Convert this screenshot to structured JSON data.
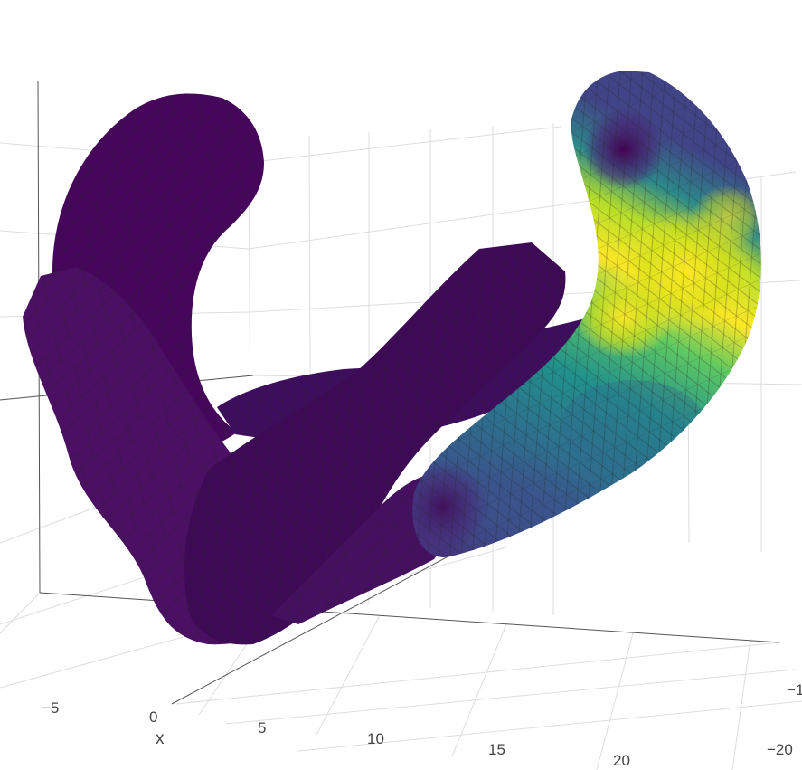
{
  "chart_data": {
    "type": "surface",
    "description": "3D triangulated mesh surface colored by a scalar field",
    "colorscale": "viridis",
    "colors": {
      "low": "#440154",
      "mid_low": "#31688e",
      "mid": "#21918c",
      "mid_high": "#5ec962",
      "high": "#fde725",
      "mesh_edge": "#333333",
      "grid": "#d9d9d9"
    },
    "axes": {
      "x": {
        "title": "x",
        "ticks": [
          "−5",
          "0",
          "5",
          "10",
          "15",
          "20"
        ]
      },
      "y": {
        "title": "",
        "ticks": [
          "−1",
          "−20"
        ]
      },
      "z": {
        "title": "",
        "ticks": []
      }
    },
    "grid": true
  }
}
